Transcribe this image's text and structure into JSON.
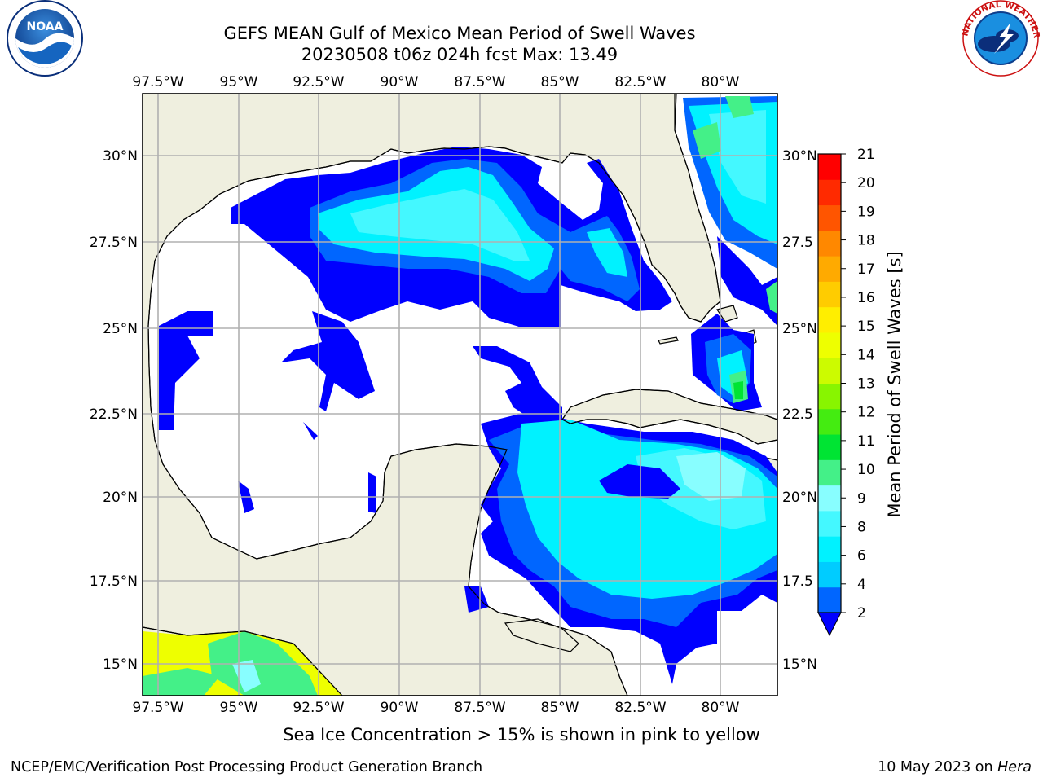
{
  "header": {
    "title": "GEFS MEAN Gulf of Mexico Mean Period of Swell Waves",
    "subtitle": "20230508 t06z 024h fcst   Max: 13.49"
  },
  "logos": {
    "left": {
      "name": "noaa-logo",
      "text": "NOAA"
    },
    "right": {
      "name": "national-weather-service-logo",
      "text": "NATIONAL WEATHER SERVICE"
    }
  },
  "map": {
    "lon_labels": [
      "97.5°W",
      "95°W",
      "92.5°W",
      "90°W",
      "87.5°W",
      "85°W",
      "82.5°W",
      "80°W"
    ],
    "lat_labels_left": [
      "30°N",
      "27.5°N",
      "25°N",
      "22.5°N",
      "20°N",
      "17.5°N",
      "15°N"
    ],
    "lat_labels_right": [
      "30°N",
      "27.5",
      "25°N",
      "22.5",
      "20°N",
      "17.5",
      "15°N"
    ],
    "land_color": "#efefdf",
    "ocean_color": "#ffffff"
  },
  "colorbar": {
    "label": "Mean Period of Swell Waves [s]",
    "ticks": [
      "21",
      "20",
      "19",
      "18",
      "17",
      "16",
      "15",
      "14",
      "13",
      "12",
      "11",
      "10",
      "9",
      "8",
      "6",
      "4",
      "2"
    ],
    "colors_bottom_to_top": [
      "#0066ff",
      "#00ccff",
      "#00f2ff",
      "#44f8ff",
      "#88feff",
      "#44f088",
      "#00e433",
      "#44ec11",
      "#88f500",
      "#ccfb00",
      "#eeff00",
      "#ffee00",
      "#ffcc00",
      "#ffaa00",
      "#ff8800",
      "#ff5500",
      "#ff2a00",
      "#ff0000"
    ],
    "under_color": "#0000ff"
  },
  "note": "Sea Ice Concentration > 15% is shown in pink to yellow",
  "footer": {
    "left": "NCEP/EMC/Verification Post Processing Product Generation Branch",
    "right_date": "10 May 2023 on ",
    "right_machine": "Hera"
  }
}
